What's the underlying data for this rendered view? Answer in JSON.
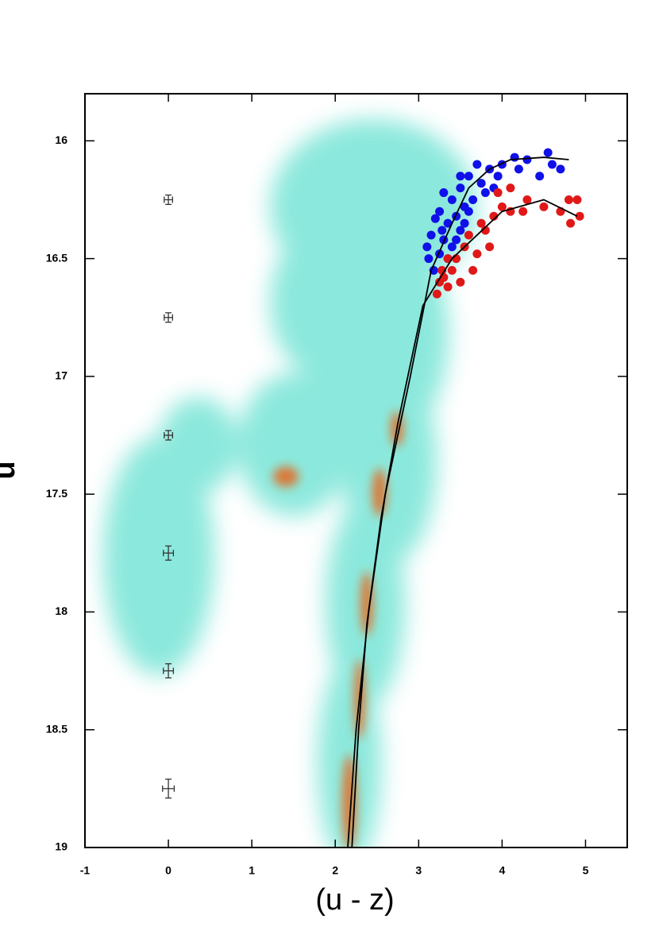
{
  "chart_data": {
    "type": "scatter",
    "x_label": "(u - z)",
    "y_label": "u",
    "xlim": [
      -1,
      5.5
    ],
    "ylim": [
      19,
      15.8
    ],
    "xticks": [
      -1,
      0,
      1,
      2,
      3,
      4,
      5
    ],
    "yticks": [
      16,
      16.5,
      17,
      17.5,
      18,
      18.5,
      19
    ],
    "inverted_y": true,
    "series": [
      {
        "mode": "markers",
        "color": "#1010e8",
        "x": [
          4.55,
          4.7,
          4.6,
          4.3,
          4.15,
          4.0,
          3.85,
          3.95,
          3.7,
          3.75,
          3.6,
          3.5,
          3.65,
          3.55,
          3.8,
          3.4,
          3.3,
          3.25,
          3.45,
          3.35,
          3.5,
          3.2,
          3.15,
          3.3,
          3.4,
          3.25,
          3.12,
          3.18,
          3.35,
          3.55,
          3.6,
          3.1,
          4.45,
          4.2,
          3.9,
          3.45,
          3.28,
          3.5
        ],
        "y": [
          16.05,
          16.12,
          16.1,
          16.08,
          16.07,
          16.1,
          16.12,
          16.15,
          16.1,
          16.18,
          16.15,
          16.2,
          16.25,
          16.28,
          16.22,
          16.25,
          16.22,
          16.3,
          16.32,
          16.35,
          16.38,
          16.33,
          16.4,
          16.42,
          16.45,
          16.48,
          16.5,
          16.55,
          16.5,
          16.35,
          16.3,
          16.45,
          16.15,
          16.12,
          16.2,
          16.42,
          16.38,
          16.15
        ]
      },
      {
        "mode": "markers",
        "color": "#e01818",
        "x": [
          4.8,
          4.9,
          4.7,
          4.93,
          4.82,
          4.5,
          4.25,
          4.1,
          4.0,
          3.95,
          4.1,
          3.9,
          3.75,
          3.8,
          3.6,
          3.55,
          3.7,
          3.85,
          3.45,
          3.35,
          3.4,
          3.3,
          3.25,
          3.35,
          3.22,
          3.28,
          3.5,
          3.65,
          4.3
        ],
        "y": [
          16.25,
          16.25,
          16.3,
          16.32,
          16.35,
          16.28,
          16.3,
          16.3,
          16.28,
          16.22,
          16.2,
          16.32,
          16.35,
          16.38,
          16.4,
          16.45,
          16.48,
          16.45,
          16.5,
          16.5,
          16.55,
          16.58,
          16.6,
          16.62,
          16.65,
          16.55,
          16.6,
          16.55,
          16.25
        ]
      },
      {
        "mode": "line",
        "color": "#000000",
        "x": [
          2.15,
          2.25,
          2.4,
          2.6,
          2.9,
          3.15,
          3.4,
          3.6,
          3.85,
          4.1,
          4.5,
          4.8
        ],
        "y": [
          19,
          18.5,
          18,
          17.5,
          17,
          16.55,
          16.35,
          16.2,
          16.12,
          16.08,
          16.07,
          16.08
        ]
      },
      {
        "mode": "line",
        "color": "#000000",
        "x": [
          2.2,
          2.28,
          2.38,
          2.55,
          2.75,
          3.05,
          3.4,
          3.7,
          4.0,
          4.5,
          4.9
        ],
        "y": [
          19,
          18.5,
          18.05,
          17.6,
          17.2,
          16.7,
          16.5,
          16.4,
          16.3,
          16.25,
          16.32
        ]
      }
    ],
    "errorbars": {
      "color": "#333333",
      "x": [
        0,
        0,
        0,
        0,
        0,
        0
      ],
      "y": [
        16.25,
        16.75,
        17.25,
        17.75,
        18.25,
        18.75
      ],
      "xerr": [
        0.05,
        0.05,
        0.05,
        0.06,
        0.06,
        0.07
      ],
      "yerr": [
        0.02,
        0.02,
        0.02,
        0.03,
        0.03,
        0.04
      ]
    }
  }
}
